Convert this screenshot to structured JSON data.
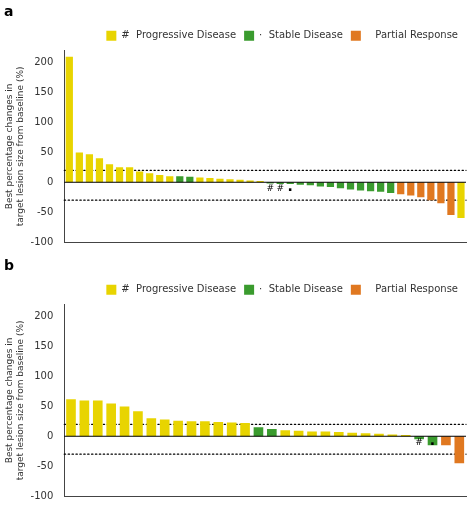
{
  "chart_data": [
    {
      "type": "bar",
      "title": "a",
      "y_label": "Best percentage changes in\ntarget lesion size from baseline (%)",
      "categories": [
        null,
        null,
        null,
        null,
        null,
        null,
        null,
        null,
        null,
        null,
        null,
        null,
        null,
        null,
        null,
        null,
        null,
        null,
        null,
        null,
        null,
        null,
        null,
        null,
        null,
        null,
        null,
        null,
        null,
        null,
        null,
        null,
        null,
        null,
        null,
        null,
        null,
        null,
        null,
        null
      ],
      "series": [
        {
          "name": "#  Progressive Disease",
          "color": "#E8D400",
          "values": [
            210,
            50,
            47,
            40,
            30,
            25,
            25,
            18,
            15,
            12,
            10,
            null,
            null,
            8,
            7,
            6,
            5,
            4,
            3,
            2,
            null,
            null,
            null,
            null,
            null,
            null,
            null,
            null,
            null,
            null,
            null,
            null,
            null,
            null,
            null,
            null,
            null,
            null,
            null,
            -60
          ]
        },
        {
          "name": "·  Stable Disease",
          "color": "#3A9B2E",
          "values": [
            null,
            null,
            null,
            null,
            null,
            null,
            null,
            null,
            null,
            null,
            null,
            10,
            9,
            null,
            null,
            null,
            null,
            null,
            null,
            null,
            -2,
            -3,
            -3,
            -4,
            -5,
            -7,
            -8,
            -10,
            -12,
            -14,
            -15,
            -16,
            -18,
            null,
            null,
            null,
            null,
            null,
            null,
            null
          ]
        },
        {
          "name": "   Partial Response",
          "color": "#E07820",
          "values": [
            null,
            null,
            null,
            null,
            null,
            null,
            null,
            null,
            null,
            null,
            null,
            null,
            null,
            null,
            null,
            null,
            null,
            null,
            null,
            null,
            null,
            null,
            null,
            null,
            null,
            null,
            null,
            null,
            null,
            null,
            null,
            null,
            null,
            -20,
            -22,
            -25,
            -30,
            -35,
            -55,
            null
          ]
        }
      ],
      "reference_lines": [
        {
          "y": 20,
          "line_style": "dotted"
        },
        {
          "y": -30,
          "line_style": "dotted"
        },
        {
          "y": 0,
          "line_style": "solid"
        }
      ],
      "annotations": [
        {
          "text": "#",
          "index": 20,
          "y": -4
        },
        {
          "text": "#",
          "index": 21,
          "y": -4
        },
        {
          "text": "·",
          "index": 22,
          "y": -3
        }
      ],
      "ylim": [
        -100,
        220
      ],
      "yticks": [
        -100,
        -50,
        0,
        50,
        100,
        150,
        200
      ],
      "grid": false,
      "legend": "upper right",
      "tick_labels": "y"
    },
    {
      "type": "bar",
      "title": "b",
      "y_label": "Best percentage changes in\ntarget lesion size from baseline (%)",
      "categories": [
        null,
        null,
        null,
        null,
        null,
        null,
        null,
        null,
        null,
        null,
        null,
        null,
        null,
        null,
        null,
        null,
        null,
        null,
        null,
        null,
        null,
        null,
        null,
        null,
        null,
        null,
        null,
        null,
        null,
        null
      ],
      "series": [
        {
          "name": "#  Progressive Disease",
          "color": "#E8D400",
          "values": [
            62,
            60,
            60,
            55,
            50,
            42,
            30,
            28,
            26,
            25,
            25,
            24,
            23,
            22,
            null,
            null,
            10,
            9,
            8,
            8,
            7,
            6,
            5,
            4,
            3,
            2,
            null,
            null,
            null,
            null
          ]
        },
        {
          "name": "·  Stable Disease",
          "color": "#3A9B2E",
          "values": [
            null,
            null,
            null,
            null,
            null,
            null,
            null,
            null,
            null,
            null,
            null,
            null,
            null,
            null,
            15,
            12,
            null,
            null,
            null,
            null,
            null,
            null,
            null,
            null,
            null,
            null,
            -5,
            -15,
            null,
            null
          ]
        },
        {
          "name": "   Partial Response",
          "color": "#E07820",
          "values": [
            null,
            null,
            null,
            null,
            null,
            null,
            null,
            null,
            null,
            null,
            null,
            null,
            null,
            null,
            null,
            null,
            null,
            null,
            null,
            null,
            null,
            null,
            null,
            null,
            null,
            null,
            null,
            null,
            -15,
            -45
          ]
        }
      ],
      "reference_lines": [
        {
          "y": 20,
          "line_style": "dotted"
        },
        {
          "y": -30,
          "line_style": "dotted"
        },
        {
          "y": 0,
          "line_style": "solid"
        }
      ],
      "annotations": [
        {
          "text": "#",
          "index": 26,
          "y": -4
        },
        {
          "text": "·",
          "index": 27,
          "y": -3
        }
      ],
      "ylim": [
        -100,
        220
      ],
      "yticks": [
        -100,
        -50,
        0,
        50,
        100,
        150,
        200
      ],
      "grid": false,
      "legend": "upper right",
      "tick_labels": "y"
    }
  ]
}
